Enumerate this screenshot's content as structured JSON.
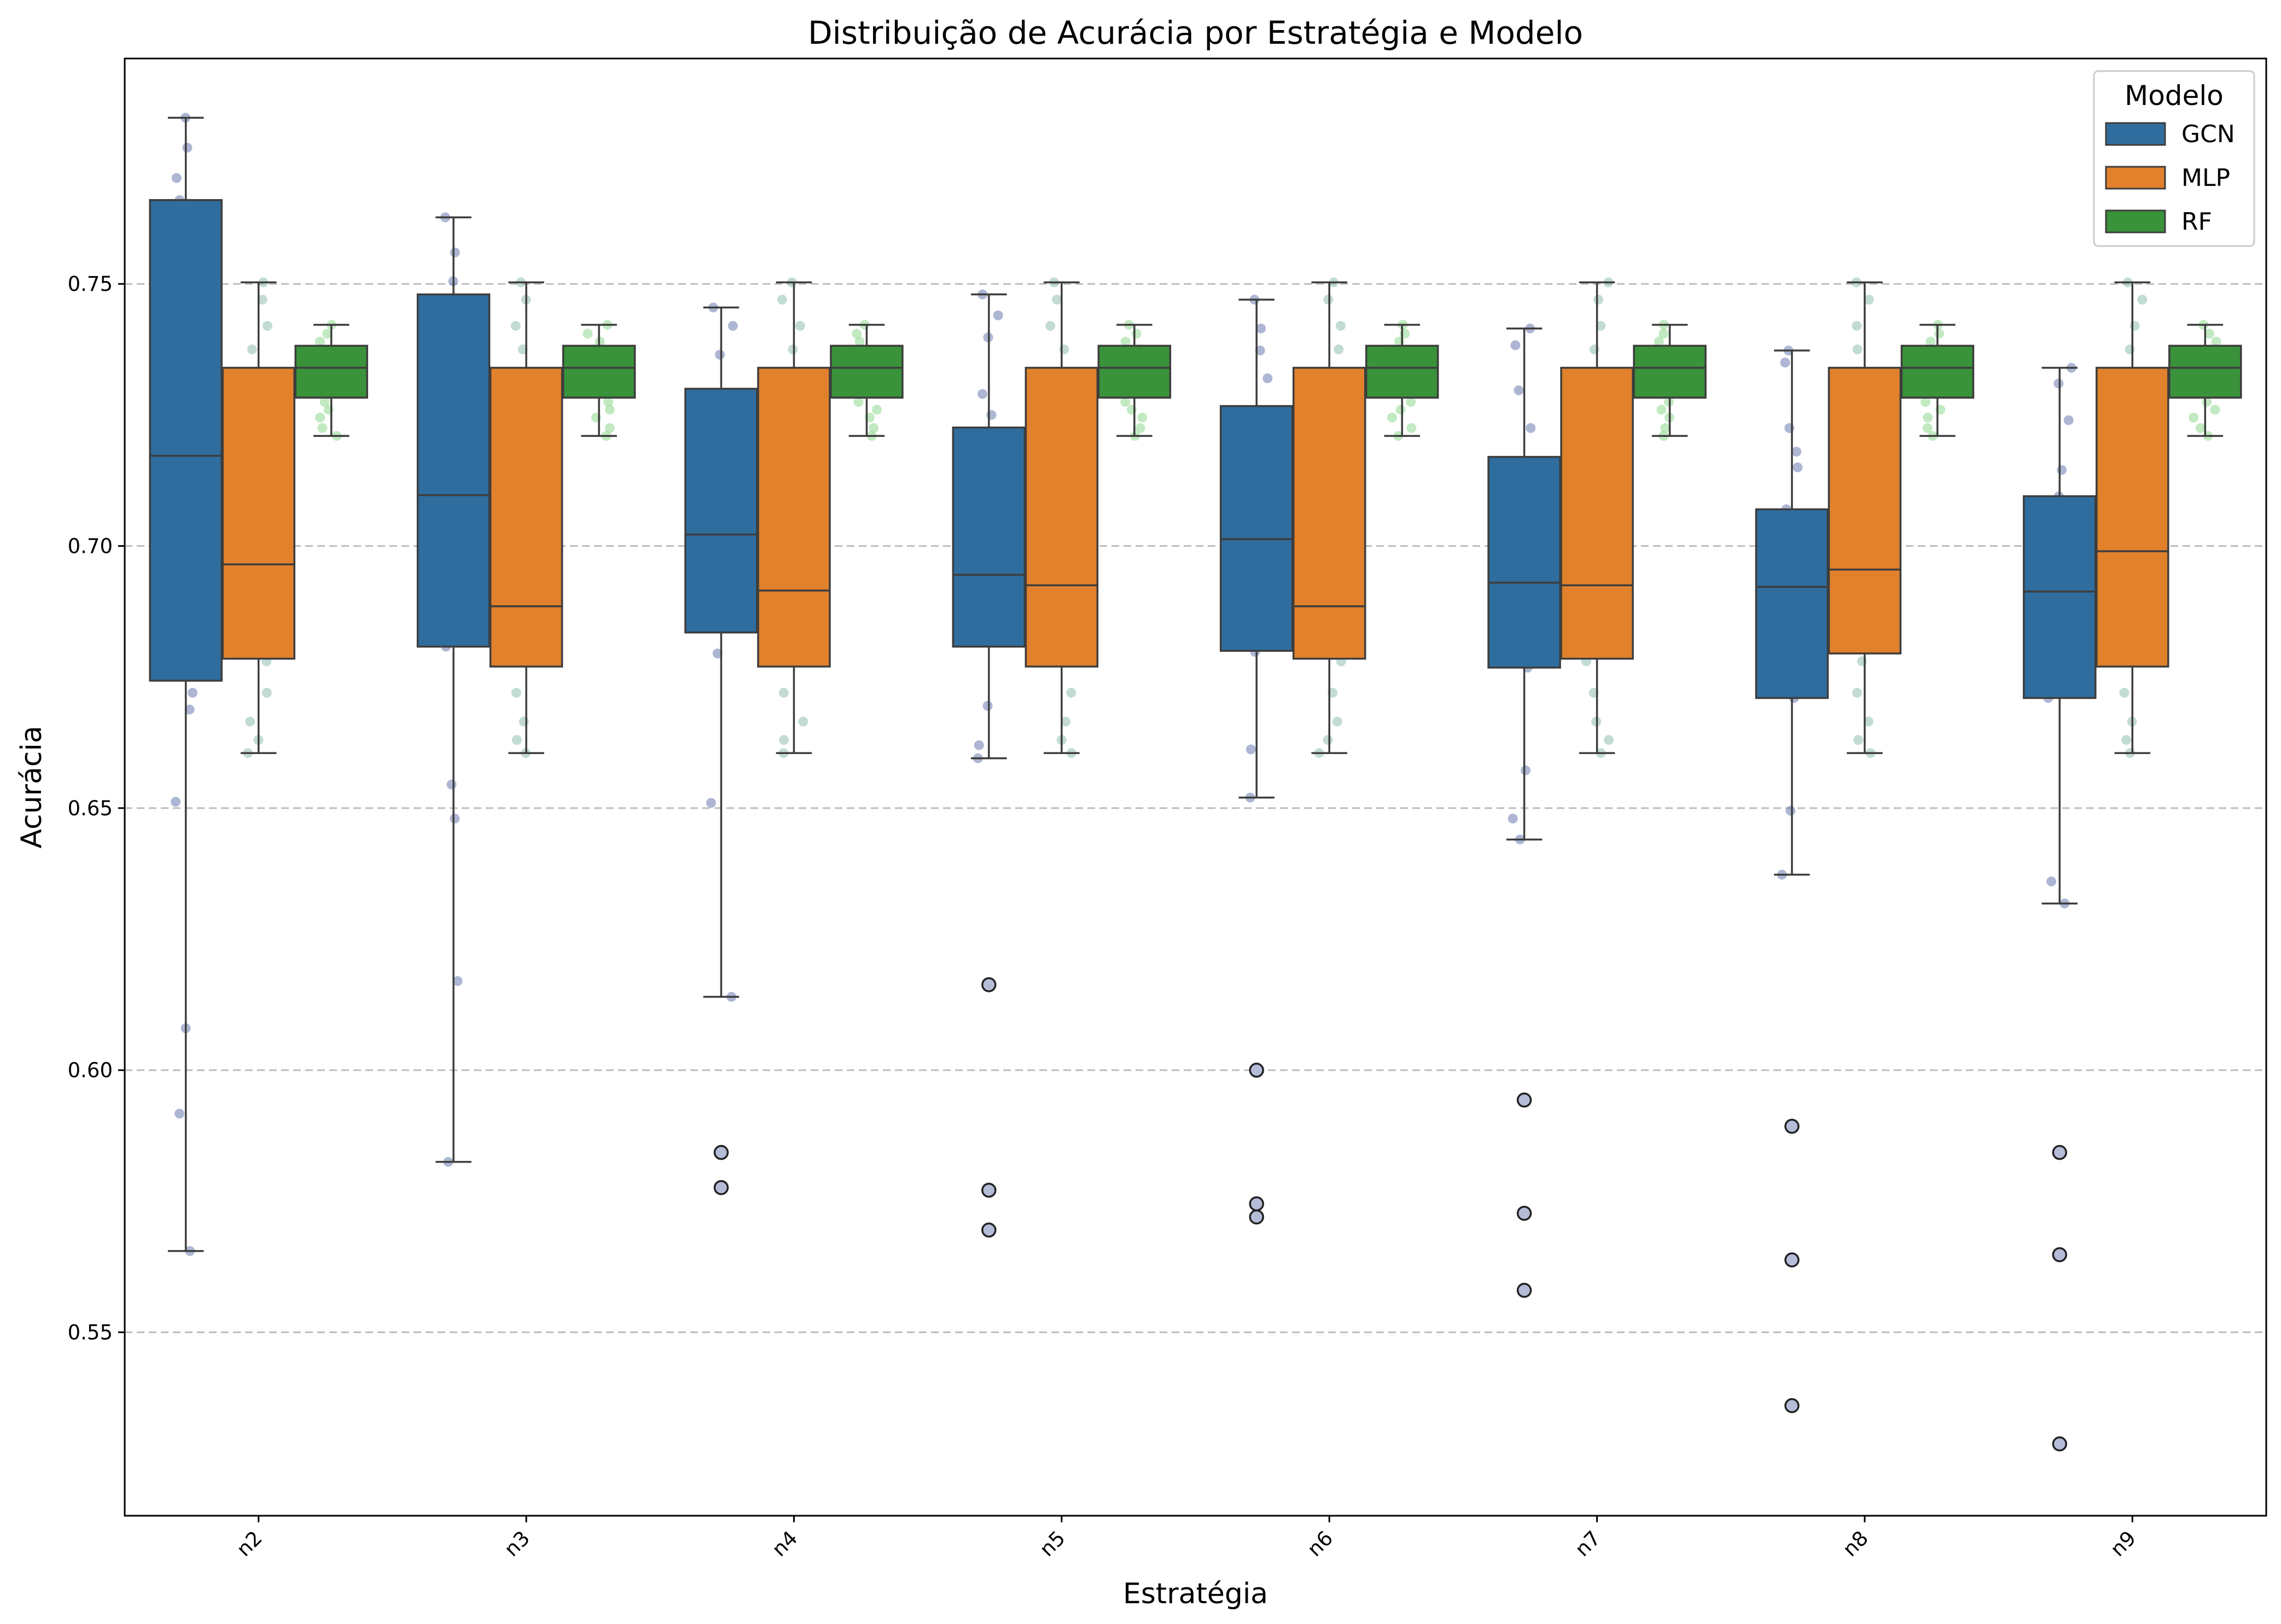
{
  "chart_data": {
    "type": "box",
    "title": "Distribuição de Acurácia por Estratégia e Modelo",
    "xlabel": "Estratégia",
    "ylabel": "Acurácia",
    "ylim": [
      0.515,
      0.793
    ],
    "yticks": [
      0.55,
      0.6,
      0.65,
      0.7,
      0.75
    ],
    "ytick_labels": [
      "0.55",
      "0.60",
      "0.65",
      "0.70",
      "0.75"
    ],
    "grid": "y-dashed",
    "categories": [
      "n2",
      "n3",
      "n4",
      "n5",
      "n6",
      "n7",
      "n8",
      "n9"
    ],
    "legend": {
      "title": "Modelo",
      "position": "top-right"
    },
    "series": [
      {
        "name": "GCN",
        "color": "#2f6d9e",
        "point_color": "#6a7bb0",
        "boxes": [
          {
            "whisker_low": 0.5655,
            "q1": 0.6743,
            "median": 0.7172,
            "q3": 0.766,
            "whisker_high": 0.7817,
            "outliers": []
          },
          {
            "whisker_low": 0.5825,
            "q1": 0.6808,
            "median": 0.7097,
            "q3": 0.748,
            "whisker_high": 0.7627,
            "outliers": []
          },
          {
            "whisker_low": 0.614,
            "q1": 0.6835,
            "median": 0.7022,
            "q3": 0.73,
            "whisker_high": 0.7455,
            "outliers": [
              0.5843,
              0.5776
            ]
          },
          {
            "whisker_low": 0.6595,
            "q1": 0.6808,
            "median": 0.6945,
            "q3": 0.7226,
            "whisker_high": 0.748,
            "outliers": [
              0.6163,
              0.5771,
              0.5695
            ]
          },
          {
            "whisker_low": 0.652,
            "q1": 0.68,
            "median": 0.7013,
            "q3": 0.7267,
            "whisker_high": 0.747,
            "outliers": [
              0.6,
              0.5745,
              0.572
            ]
          },
          {
            "whisker_low": 0.644,
            "q1": 0.6768,
            "median": 0.693,
            "q3": 0.717,
            "whisker_high": 0.7415,
            "outliers": [
              0.5943,
              0.5727,
              0.558
            ]
          },
          {
            "whisker_low": 0.6373,
            "q1": 0.671,
            "median": 0.6922,
            "q3": 0.707,
            "whisker_high": 0.7373,
            "outliers": [
              0.5893,
              0.5638,
              0.536
            ]
          },
          {
            "whisker_low": 0.6318,
            "q1": 0.671,
            "median": 0.6913,
            "q3": 0.7095,
            "whisker_high": 0.734,
            "outliers": [
              0.5843,
              0.5648,
              0.5287
            ]
          }
        ],
        "points": [
          [
            0.7817,
            0.776,
            0.7702,
            0.766,
            0.751,
            0.74,
            0.7235,
            0.7102,
            0.7038,
            0.6843,
            0.679,
            0.672,
            0.6688,
            0.6512,
            0.608,
            0.5917,
            0.5655
          ],
          [
            0.7627,
            0.756,
            0.7505,
            0.745,
            0.732,
            0.728,
            0.7135,
            0.701,
            0.6965,
            0.6868,
            0.6808,
            0.6545,
            0.648,
            0.617,
            0.5825
          ],
          [
            0.7455,
            0.742,
            0.7365,
            0.7285,
            0.7185,
            0.7105,
            0.704,
            0.696,
            0.6905,
            0.6795,
            0.651,
            0.614
          ],
          [
            0.748,
            0.744,
            0.7398,
            0.729,
            0.725,
            0.72,
            0.7055,
            0.697,
            0.6892,
            0.6818,
            0.6695,
            0.662,
            0.6595
          ],
          [
            0.747,
            0.7415,
            0.7373,
            0.732,
            0.7165,
            0.7095,
            0.7045,
            0.6962,
            0.6887,
            0.6848,
            0.6798,
            0.6612,
            0.652
          ],
          [
            0.7415,
            0.7383,
            0.7297,
            0.7225,
            0.7103,
            0.704,
            0.696,
            0.687,
            0.679,
            0.6768,
            0.6572,
            0.648,
            0.644
          ],
          [
            0.7373,
            0.735,
            0.7225,
            0.718,
            0.715,
            0.707,
            0.696,
            0.6845,
            0.68,
            0.671,
            0.6495,
            0.6373
          ],
          [
            0.734,
            0.731,
            0.724,
            0.7145,
            0.7095,
            0.701,
            0.6918,
            0.6848,
            0.6748,
            0.671,
            0.636,
            0.6318
          ]
        ]
      },
      {
        "name": "MLP",
        "color": "#e1812c",
        "point_color": "#8fbfae",
        "boxes": [
          {
            "whisker_low": 0.6605,
            "q1": 0.6785,
            "median": 0.6965,
            "q3": 0.734,
            "whisker_high": 0.7503,
            "outliers": []
          },
          {
            "whisker_low": 0.6605,
            "q1": 0.677,
            "median": 0.6885,
            "q3": 0.734,
            "whisker_high": 0.7503,
            "outliers": []
          },
          {
            "whisker_low": 0.6605,
            "q1": 0.677,
            "median": 0.6915,
            "q3": 0.734,
            "whisker_high": 0.7503,
            "outliers": []
          },
          {
            "whisker_low": 0.6605,
            "q1": 0.677,
            "median": 0.6925,
            "q3": 0.734,
            "whisker_high": 0.7503,
            "outliers": []
          },
          {
            "whisker_low": 0.6605,
            "q1": 0.6785,
            "median": 0.6885,
            "q3": 0.734,
            "whisker_high": 0.7503,
            "outliers": []
          },
          {
            "whisker_low": 0.6605,
            "q1": 0.6785,
            "median": 0.6925,
            "q3": 0.734,
            "whisker_high": 0.7503,
            "outliers": []
          },
          {
            "whisker_low": 0.6605,
            "q1": 0.6795,
            "median": 0.6955,
            "q3": 0.734,
            "whisker_high": 0.7503,
            "outliers": []
          },
          {
            "whisker_low": 0.6605,
            "q1": 0.677,
            "median": 0.699,
            "q3": 0.734,
            "whisker_high": 0.7503,
            "outliers": []
          }
        ],
        "points": [
          [
            0.7503,
            0.747,
            0.742,
            0.7375,
            0.7225,
            0.7205,
            0.704,
            0.702,
            0.687,
            0.6815,
            0.678,
            0.672,
            0.6665,
            0.663,
            0.6605
          ],
          [
            0.7503,
            0.747,
            0.742,
            0.7375,
            0.7225,
            0.7205,
            0.704,
            0.702,
            0.687,
            0.6815,
            0.678,
            0.672,
            0.6665,
            0.663,
            0.6605
          ],
          [
            0.7503,
            0.747,
            0.742,
            0.7375,
            0.7225,
            0.7205,
            0.704,
            0.702,
            0.687,
            0.6815,
            0.678,
            0.672,
            0.6665,
            0.663,
            0.6605
          ],
          [
            0.7503,
            0.747,
            0.742,
            0.7375,
            0.7225,
            0.7205,
            0.704,
            0.702,
            0.687,
            0.6815,
            0.678,
            0.672,
            0.6665,
            0.663,
            0.6605
          ],
          [
            0.7503,
            0.747,
            0.742,
            0.7375,
            0.7225,
            0.7205,
            0.704,
            0.702,
            0.687,
            0.6815,
            0.678,
            0.672,
            0.6665,
            0.663,
            0.6605
          ],
          [
            0.7503,
            0.747,
            0.742,
            0.7375,
            0.7225,
            0.7205,
            0.704,
            0.702,
            0.687,
            0.6815,
            0.678,
            0.672,
            0.6665,
            0.663,
            0.6605
          ],
          [
            0.7503,
            0.747,
            0.742,
            0.7375,
            0.7225,
            0.7205,
            0.704,
            0.702,
            0.687,
            0.6815,
            0.678,
            0.672,
            0.6665,
            0.663,
            0.6605
          ],
          [
            0.7503,
            0.747,
            0.742,
            0.7375,
            0.7225,
            0.7205,
            0.704,
            0.702,
            0.687,
            0.6815,
            0.678,
            0.672,
            0.6665,
            0.663,
            0.6605
          ]
        ]
      },
      {
        "name": "RF",
        "color": "#3a923a",
        "point_color": "#8fd88f",
        "boxes": [
          {
            "whisker_low": 0.721,
            "q1": 0.7283,
            "median": 0.734,
            "q3": 0.7382,
            "whisker_high": 0.7422,
            "outliers": []
          },
          {
            "whisker_low": 0.721,
            "q1": 0.7283,
            "median": 0.734,
            "q3": 0.7382,
            "whisker_high": 0.7422,
            "outliers": []
          },
          {
            "whisker_low": 0.721,
            "q1": 0.7283,
            "median": 0.734,
            "q3": 0.7382,
            "whisker_high": 0.7422,
            "outliers": []
          },
          {
            "whisker_low": 0.721,
            "q1": 0.7283,
            "median": 0.734,
            "q3": 0.7382,
            "whisker_high": 0.7422,
            "outliers": []
          },
          {
            "whisker_low": 0.721,
            "q1": 0.7283,
            "median": 0.734,
            "q3": 0.7382,
            "whisker_high": 0.7422,
            "outliers": []
          },
          {
            "whisker_low": 0.721,
            "q1": 0.7283,
            "median": 0.734,
            "q3": 0.7382,
            "whisker_high": 0.7422,
            "outliers": []
          },
          {
            "whisker_low": 0.721,
            "q1": 0.7283,
            "median": 0.734,
            "q3": 0.7382,
            "whisker_high": 0.7422,
            "outliers": []
          },
          {
            "whisker_low": 0.721,
            "q1": 0.7283,
            "median": 0.734,
            "q3": 0.7382,
            "whisker_high": 0.7422,
            "outliers": []
          }
        ],
        "points": [
          [
            0.7422,
            0.7405,
            0.739,
            0.7375,
            0.736,
            0.7345,
            0.7335,
            0.732,
            0.7305,
            0.729,
            0.7275,
            0.726,
            0.7245,
            0.7225,
            0.721
          ],
          [
            0.7422,
            0.7405,
            0.739,
            0.7375,
            0.736,
            0.7345,
            0.7335,
            0.732,
            0.7305,
            0.729,
            0.7275,
            0.726,
            0.7245,
            0.7225,
            0.721
          ],
          [
            0.7422,
            0.7405,
            0.739,
            0.7375,
            0.736,
            0.7345,
            0.7335,
            0.732,
            0.7305,
            0.729,
            0.7275,
            0.726,
            0.7245,
            0.7225,
            0.721
          ],
          [
            0.7422,
            0.7405,
            0.739,
            0.7375,
            0.736,
            0.7345,
            0.7335,
            0.732,
            0.7305,
            0.729,
            0.7275,
            0.726,
            0.7245,
            0.7225,
            0.721
          ],
          [
            0.7422,
            0.7405,
            0.739,
            0.7375,
            0.736,
            0.7345,
            0.7335,
            0.732,
            0.7305,
            0.729,
            0.7275,
            0.726,
            0.7245,
            0.7225,
            0.721
          ],
          [
            0.7422,
            0.7405,
            0.739,
            0.7375,
            0.736,
            0.7345,
            0.7335,
            0.732,
            0.7305,
            0.729,
            0.7275,
            0.726,
            0.7245,
            0.7225,
            0.721
          ],
          [
            0.7422,
            0.7405,
            0.739,
            0.7375,
            0.736,
            0.7345,
            0.7335,
            0.732,
            0.7305,
            0.729,
            0.7275,
            0.726,
            0.7245,
            0.7225,
            0.721
          ],
          [
            0.7422,
            0.7405,
            0.739,
            0.7375,
            0.736,
            0.7345,
            0.7335,
            0.732,
            0.7305,
            0.729,
            0.7275,
            0.726,
            0.7245,
            0.7225,
            0.721
          ]
        ]
      }
    ]
  }
}
